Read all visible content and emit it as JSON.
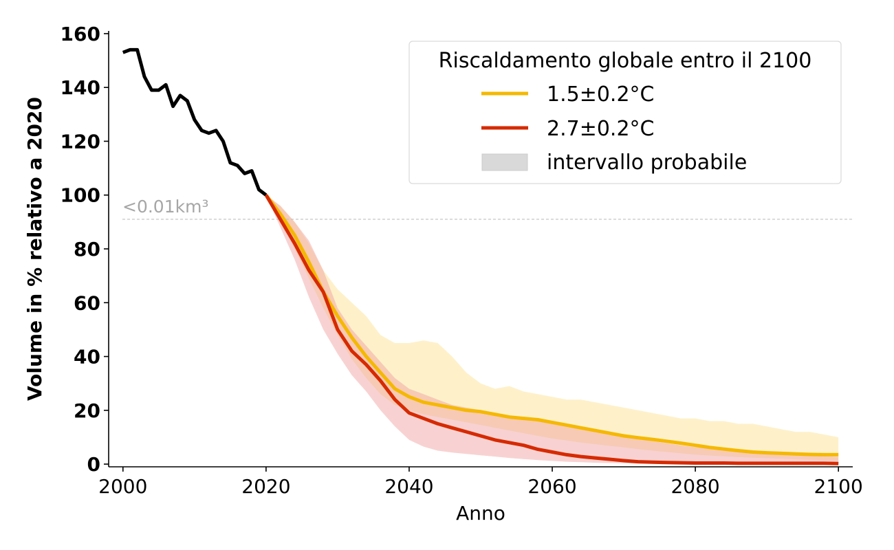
{
  "chart_data": {
    "type": "line",
    "xlabel": "Anno",
    "ylabel": "Volume in % relativo a 2020",
    "xlim": [
      1998,
      2102
    ],
    "ylim": [
      -1,
      161
    ],
    "xticks": [
      2000,
      2020,
      2040,
      2060,
      2080,
      2100
    ],
    "yticks": [
      0,
      20,
      40,
      60,
      80,
      100,
      120,
      140,
      160
    ],
    "grid": false,
    "legend": {
      "title": "Riscaldamento globale entro il 2100",
      "placement": "top-right",
      "entries": [
        "1.5±0.2°C",
        "2.7±0.2°C",
        "intervallo probabile"
      ]
    },
    "annotation": {
      "text": "<0.01km³",
      "y": 91,
      "note_color": "#a6a6a6"
    },
    "colors": {
      "historical": "#000000",
      "low": "#f5b800",
      "high": "#d62a00",
      "low_band": "#fde8a6",
      "high_band": "#ef9c9c",
      "band_legend": "#d9d9d9",
      "threshold": "#bfbfbf"
    },
    "historical": {
      "x": [
        2000,
        2001,
        2002,
        2003,
        2004,
        2005,
        2006,
        2007,
        2008,
        2009,
        2010,
        2011,
        2012,
        2013,
        2014,
        2015,
        2016,
        2017,
        2018,
        2019,
        2020
      ],
      "y": [
        153,
        154,
        154,
        144,
        139,
        139,
        141,
        133,
        137,
        135,
        128,
        124,
        123,
        124,
        120,
        112,
        111,
        108,
        109,
        102,
        100
      ]
    },
    "series": [
      {
        "name": "1.5±0.2°C",
        "x": [
          2020,
          2022,
          2024,
          2026,
          2028,
          2030,
          2032,
          2034,
          2036,
          2038,
          2040,
          2042,
          2044,
          2046,
          2048,
          2050,
          2052,
          2054,
          2056,
          2058,
          2060,
          2062,
          2064,
          2066,
          2068,
          2070,
          2072,
          2074,
          2076,
          2078,
          2080,
          2082,
          2084,
          2086,
          2088,
          2090,
          2092,
          2094,
          2096,
          2098,
          2100
        ],
        "y": [
          100,
          93,
          85,
          75,
          64,
          55,
          47,
          40,
          34,
          28,
          25,
          23,
          22,
          21,
          20,
          19.5,
          18.5,
          17.5,
          17,
          16.5,
          15.5,
          14.5,
          13.5,
          12.5,
          11.5,
          10.5,
          9.8,
          9.2,
          8.5,
          7.8,
          7,
          6.2,
          5.6,
          5,
          4.5,
          4.2,
          4,
          3.8,
          3.6,
          3.5,
          3.5
        ],
        "band_lower": [
          100,
          91,
          80,
          69,
          58,
          48,
          39,
          32,
          26,
          22,
          20,
          18.5,
          17.5,
          16.5,
          15.5,
          14.5,
          13.5,
          12.5,
          11.5,
          10.5,
          9.5,
          8.8,
          8,
          7.4,
          6.8,
          6.2,
          5.6,
          5,
          4.5,
          4,
          3.5,
          3.2,
          2.9,
          2.6,
          2.4,
          2.2,
          2,
          1.8,
          1.6,
          1.4,
          1.2
        ],
        "band_upper": [
          100,
          96,
          90,
          82,
          72,
          65,
          60,
          55,
          48,
          45,
          45,
          46,
          45,
          40,
          34,
          30,
          28,
          29,
          27,
          26,
          25,
          24,
          24,
          23,
          22,
          21,
          20,
          19,
          18,
          17,
          17,
          16,
          16,
          15,
          15,
          14,
          13,
          12,
          12,
          11,
          10
        ]
      },
      {
        "name": "2.7±0.2°C",
        "x": [
          2020,
          2022,
          2024,
          2026,
          2028,
          2030,
          2032,
          2034,
          2036,
          2038,
          2040,
          2042,
          2044,
          2046,
          2048,
          2050,
          2052,
          2054,
          2056,
          2058,
          2060,
          2062,
          2064,
          2066,
          2068,
          2070,
          2072,
          2074,
          2076,
          2078,
          2080,
          2082,
          2084,
          2086,
          2088,
          2090,
          2092,
          2094,
          2096,
          2098,
          2100
        ],
        "y": [
          100,
          91,
          82,
          72,
          64,
          50,
          42,
          37,
          31,
          24,
          19,
          17,
          15,
          13.5,
          12,
          10.5,
          9,
          8,
          7,
          5.5,
          4.5,
          3.5,
          2.8,
          2.3,
          1.8,
          1.3,
          0.9,
          0.7,
          0.6,
          0.5,
          0.4,
          0.4,
          0.4,
          0.3,
          0.3,
          0.3,
          0.3,
          0.3,
          0.3,
          0.3,
          0.2
        ],
        "band_lower": [
          100,
          88,
          76,
          62,
          50,
          41,
          33,
          27,
          20,
          14,
          9,
          6.5,
          5,
          4.3,
          3.8,
          3.3,
          2.8,
          2.3,
          1.9,
          1.5,
          1.2,
          0.9,
          0.7,
          0.5,
          0.4,
          0.3,
          0.2,
          0.2,
          0.1,
          0.1,
          0.1,
          0.1,
          0.1,
          0.1,
          0.1,
          0.1,
          0.1,
          0.1,
          0.1,
          0.1,
          0.1
        ],
        "band_upper": [
          100,
          96,
          90,
          83,
          72,
          58,
          50,
          44,
          38,
          32,
          28,
          26,
          24,
          22,
          21,
          20,
          19,
          18,
          17,
          16.5,
          16,
          15,
          14,
          13,
          12,
          10.5,
          9.5,
          8.5,
          7.8,
          7,
          6.3,
          5.8,
          5.3,
          4.8,
          4.4,
          4,
          3.7,
          3.4,
          3.1,
          2.9,
          2.7
        ]
      }
    ]
  }
}
